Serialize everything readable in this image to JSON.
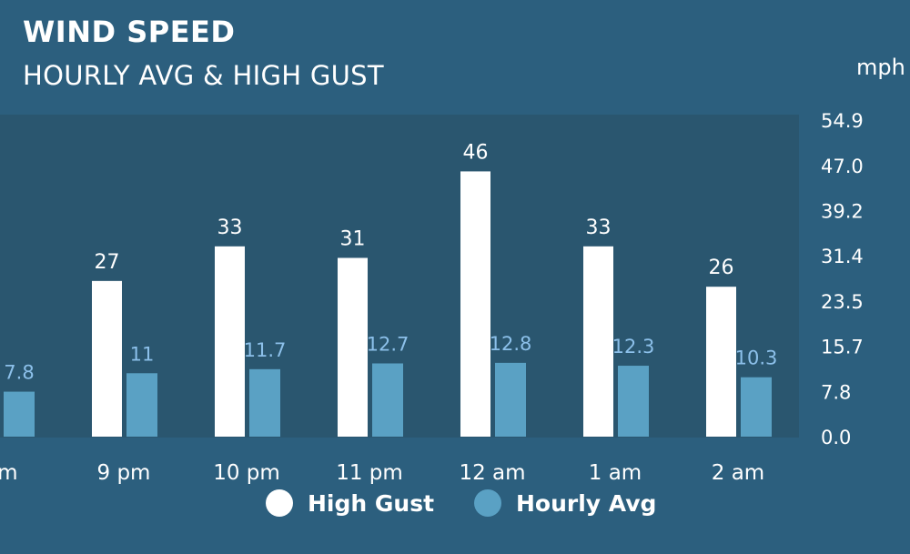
{
  "chart_data": {
    "type": "bar",
    "title": "WIND SPEED",
    "subtitle": "HOURLY AVG & HIGH GUST",
    "ylabel": "mph",
    "ylim": [
      0.0,
      54.9
    ],
    "y_ticks": [
      "54.9",
      "47.0",
      "39.2",
      "31.4",
      "23.5",
      "15.7",
      "7.8",
      "0.0"
    ],
    "categories": [
      "pm",
      "9 pm",
      "10 pm",
      "11 pm",
      "12 am",
      "1 am",
      "2 am"
    ],
    "series": [
      {
        "name": "High Gust",
        "color": "#ffffff",
        "values": [
          null,
          27,
          33,
          31,
          46,
          33,
          26
        ],
        "labels": [
          "",
          "27",
          "33",
          "31",
          "46",
          "33",
          "26"
        ]
      },
      {
        "name": "Hourly Avg",
        "color": "#5aa1c4",
        "values": [
          7.8,
          11,
          11.7,
          12.7,
          12.8,
          12.3,
          10.3
        ],
        "labels": [
          "7.8",
          "11",
          "11.7",
          "12.7",
          "12.8",
          "12.3",
          "10.3"
        ]
      }
    ],
    "legend_position": "bottom",
    "grid": false
  },
  "colors": {
    "background": "#2c5f7e",
    "plot_area": "#2a566f",
    "gust": "#ffffff",
    "avg": "#5aa1c4",
    "avg_label": "#8cc0ea"
  }
}
